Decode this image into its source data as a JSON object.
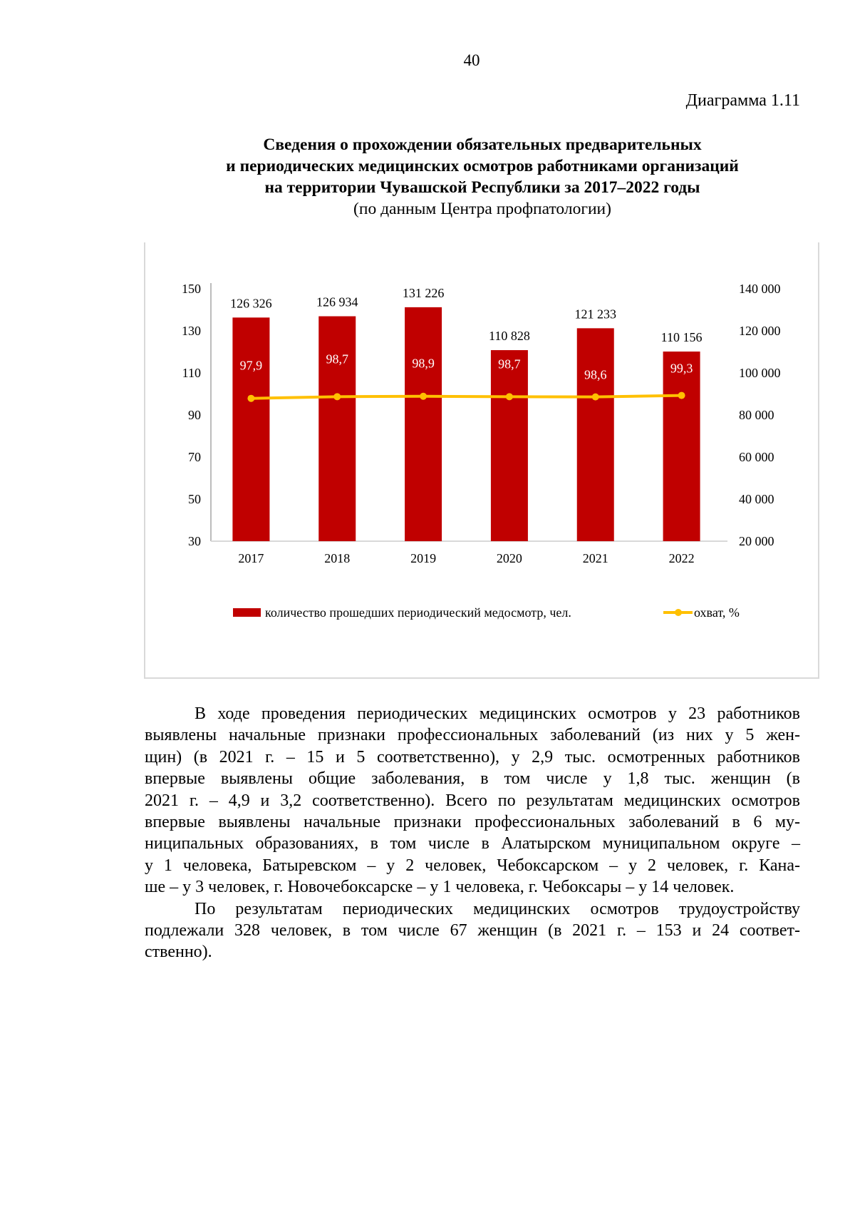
{
  "page_number": "40",
  "diagram_label": "Диаграмма 1.11",
  "title": {
    "lines": [
      "Сведения о прохождении обязательных предварительных",
      "и периодических медицинских осмотров работниками организаций",
      "на территории Чувашской Республики за 2017–2022 годы"
    ],
    "subtitle": "(по данным Центра профпатологии)"
  },
  "chart_data": {
    "type": "bar+line",
    "categories": [
      "2017",
      "2018",
      "2019",
      "2020",
      "2021",
      "2022"
    ],
    "series": [
      {
        "name": "количество прошедших периодический медосмотр, чел.",
        "type": "bar",
        "axis": "right",
        "color": "#c00000",
        "values": [
          126326,
          126934,
          131226,
          110828,
          121233,
          110156
        ],
        "labels": [
          "126 326",
          "126 934",
          "131 226",
          "110 828",
          "121 233",
          "110 156"
        ]
      },
      {
        "name": "охват, %",
        "type": "line",
        "axis": "left",
        "color": "#ffc000",
        "values": [
          97.9,
          98.7,
          98.9,
          98.7,
          98.6,
          99.3
        ],
        "labels": [
          "97,9",
          "98,7",
          "98,9",
          "98,7",
          "98,6",
          "99,3"
        ]
      }
    ],
    "left_axis": {
      "ylim": [
        30,
        150
      ],
      "ticks": [
        "150",
        "130",
        "110",
        "90",
        "70",
        "50",
        "30"
      ]
    },
    "right_axis": {
      "ylim": [
        20000,
        140000
      ],
      "ticks": [
        "140 000",
        "120 000",
        "100 000",
        "80 000",
        "60 000",
        "40 000",
        "20 000"
      ]
    },
    "legend_position": "bottom"
  },
  "body": {
    "lines": [
      "В ходе проведения периодических медицинских осмотров у 23 работников",
      "выявлены начальные признаки профессиональных заболеваний (из них у 5 жен-",
      "щин) (в 2021 г. – 15 и 5 соответственно), у 2,9 тыс. осмотренных работников",
      "впервые выявлены общие заболевания, в том числе у 1,8 тыс. женщин (в",
      "2021 г. – 4,9 и 3,2 соответственно). Всего по результатам медицинских осмотров",
      "впервые выявлены начальные признаки профессиональных заболеваний в 6 му-",
      "ниципальных образованиях, в том числе в Алатырском муниципальном округе –",
      "у 1 человека, Батыревском – у 2 человек, Чебоксарском – у 2 человек, г. Кана-",
      "ше – у 3 человек, г. Новочебоксарске – у 1 человека, г. Чебоксары – у 14 человек.",
      "По результатам периодических медицинских осмотров трудоустройству",
      "подлежали 328 человек, в том числе 67 женщин (в 2021 г. – 153 и 24 соответ-",
      "ственно)."
    ]
  }
}
